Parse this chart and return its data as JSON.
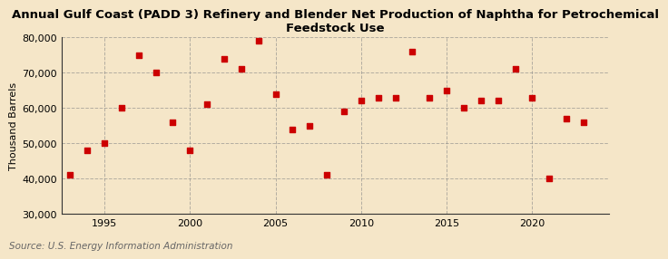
{
  "title": "Annual Gulf Coast (PADD 3) Refinery and Blender Net Production of Naphtha for Petrochemical\nFeedstock Use",
  "ylabel": "Thousand Barrels",
  "source": "Source: U.S. Energy Information Administration",
  "background_color": "#f5e6c8",
  "plot_bg_color": "#f5e6c8",
  "marker_color": "#cc0000",
  "years": [
    1993,
    1994,
    1995,
    1996,
    1997,
    1998,
    1999,
    2000,
    2001,
    2002,
    2003,
    2004,
    2005,
    2006,
    2007,
    2008,
    2009,
    2010,
    2011,
    2012,
    2013,
    2014,
    2015,
    2016,
    2017,
    2018,
    2019,
    2020,
    2021,
    2022,
    2023
  ],
  "values": [
    41000,
    48000,
    50000,
    60000,
    75000,
    70000,
    56000,
    48000,
    61000,
    74000,
    71000,
    79000,
    64000,
    54000,
    55000,
    41000,
    59000,
    62000,
    63000,
    63000,
    76000,
    63000,
    65000,
    60000,
    62000,
    62000,
    71000,
    63000,
    40000,
    57000,
    56000
  ],
  "ylim": [
    30000,
    80000
  ],
  "yticks": [
    30000,
    40000,
    50000,
    60000,
    70000,
    80000
  ],
  "xticks": [
    1995,
    2000,
    2005,
    2010,
    2015,
    2020
  ],
  "xlim": [
    1992.5,
    2024.5
  ],
  "title_fontsize": 9.5,
  "label_fontsize": 8,
  "tick_fontsize": 8,
  "source_fontsize": 7.5,
  "grid_color": "#888888",
  "spine_color": "#333333"
}
